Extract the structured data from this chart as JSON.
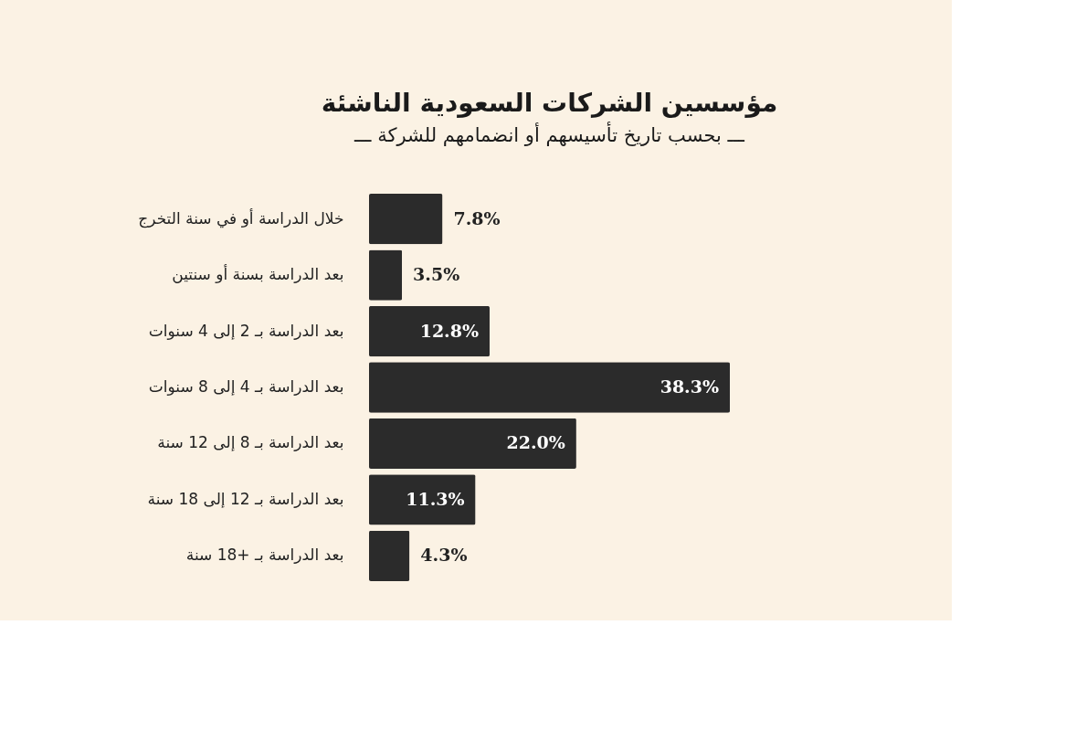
{
  "chart_data": {
    "type": "bar",
    "orientation": "horizontal",
    "title": "مؤسسين الشركات السعودية الناشئة",
    "subtitle": "ـــ بحسب تاريخ تأسيسهم أو انضمامهم للشركة ـــ",
    "categories": [
      "خلال الدراسة أو في سنة التخرج",
      "بعد الدراسة بسنة أو سنتين",
      "بعد الدراسة بـ 2 إلى 4 سنوات",
      "بعد الدراسة بـ 4 إلى 8 سنوات",
      "بعد الدراسة بـ 8 إلى 12 سنة",
      "بعد الدراسة بـ 12 إلى 18 سنة",
      "بعد الدراسة بـ +18 سنة"
    ],
    "values": [
      7.8,
      3.5,
      12.8,
      38.3,
      22.0,
      11.3,
      4.3
    ],
    "value_labels": [
      "7.8%",
      "3.5%",
      "12.8%",
      "38.3%",
      "22.0%",
      "11.3%",
      "4.3%"
    ],
    "color": "#2b2b2b",
    "xlim": [
      0,
      38.3
    ],
    "tick_labels": "y",
    "grid": false
  }
}
